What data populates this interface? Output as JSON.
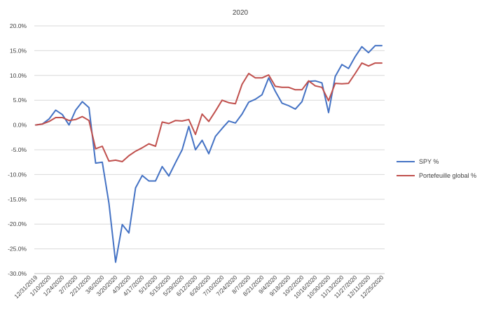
{
  "chart_data": {
    "type": "line",
    "title": "2020",
    "xlabel": "",
    "ylabel": "",
    "ylim": [
      -0.3,
      0.2
    ],
    "grid": true,
    "legend_position": "right",
    "x": [
      "12/31/2019",
      "1/3/2020",
      "1/10/2020",
      "1/17/2020",
      "1/24/2020",
      "1/31/2020",
      "2/7/2020",
      "2/14/2020",
      "2/21/2020",
      "2/28/2020",
      "3/6/2020",
      "3/13/2020",
      "3/20/2020",
      "3/27/2020",
      "4/3/2020",
      "4/10/2020",
      "4/17/2020",
      "4/24/2020",
      "5/1/2020",
      "5/8/2020",
      "5/15/2020",
      "5/22/2020",
      "5/29/2020",
      "6/5/2020",
      "6/12/2020",
      "6/19/2020",
      "6/26/2020",
      "7/3/2020",
      "7/10/2020",
      "7/17/2020",
      "7/24/2020",
      "7/31/2020",
      "8/7/2020",
      "8/14/2020",
      "8/21/2020",
      "8/28/2020",
      "9/4/2020",
      "9/11/2020",
      "9/18/2020",
      "9/25/2020",
      "10/2/2020",
      "10/9/2020",
      "10/16/2020",
      "10/23/2020",
      "10/30/2020",
      "11/6/2020",
      "11/13/2020",
      "11/20/2020",
      "11/27/2020",
      "12/4/2020",
      "12/11/2020",
      "12/18/2020",
      "12/25/2020"
    ],
    "tick_labels": [
      "12/31/2019",
      "1/10/2020",
      "1/24/2020",
      "2/7/2020",
      "2/21/2020",
      "3/6/2020",
      "3/20/2020",
      "4/3/2020",
      "4/17/2020",
      "5/1/2020",
      "5/15/2020",
      "5/29/2020",
      "6/12/2020",
      "6/26/2020",
      "7/10/2020",
      "7/24/2020",
      "8/7/2020",
      "8/21/2020",
      "9/4/2020",
      "9/18/2020",
      "10/2/2020",
      "10/16/2020",
      "10/30/2020",
      "11/13/2020",
      "11/27/2020",
      "12/11/2020",
      "12/25/2020"
    ],
    "y_tick_labels": [
      "20.0%",
      "15.0%",
      "10.0%",
      "5.0%",
      "0.0%",
      "-5.0%",
      "-10.0%",
      "-15.0%",
      "-20.0%",
      "-25.0%",
      "-30.0%"
    ],
    "y_ticks": [
      0.2,
      0.15,
      0.1,
      0.05,
      0.0,
      -0.05,
      -0.1,
      -0.15,
      -0.2,
      -0.25,
      -0.3
    ],
    "series": [
      {
        "name": "SPY %",
        "color": "#4472C4",
        "values": [
          0.0,
          0.002,
          0.012,
          0.03,
          0.021,
          0.0,
          0.03,
          0.047,
          0.035,
          -0.077,
          -0.075,
          -0.158,
          -0.277,
          -0.201,
          -0.218,
          -0.127,
          -0.102,
          -0.113,
          -0.113,
          -0.084,
          -0.103,
          -0.076,
          -0.05,
          -0.003,
          -0.05,
          -0.031,
          -0.058,
          -0.023,
          -0.007,
          0.008,
          0.004,
          0.022,
          0.046,
          0.052,
          0.061,
          0.095,
          0.068,
          0.044,
          0.039,
          0.032,
          0.047,
          0.088,
          0.089,
          0.085,
          0.025,
          0.098,
          0.122,
          0.114,
          0.138,
          0.158,
          0.146,
          0.16,
          0.16
        ]
      },
      {
        "name": "Portefeuille global %",
        "color": "#C0504D",
        "values": [
          0.0,
          0.002,
          0.007,
          0.015,
          0.015,
          0.009,
          0.011,
          0.017,
          0.009,
          -0.048,
          -0.043,
          -0.073,
          -0.071,
          -0.074,
          -0.062,
          -0.053,
          -0.046,
          -0.038,
          -0.043,
          0.006,
          0.003,
          0.009,
          0.008,
          0.011,
          -0.019,
          0.022,
          0.007,
          0.028,
          0.05,
          0.045,
          0.043,
          0.082,
          0.104,
          0.095,
          0.095,
          0.101,
          0.078,
          0.076,
          0.076,
          0.071,
          0.071,
          0.089,
          0.079,
          0.076,
          0.049,
          0.084,
          0.083,
          0.084,
          0.104,
          0.125,
          0.119,
          0.125,
          0.125
        ]
      }
    ]
  }
}
